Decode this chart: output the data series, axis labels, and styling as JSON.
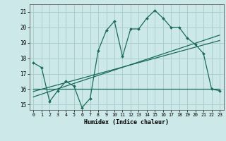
{
  "xlabel": "Humidex (Indice chaleur)",
  "bg_color": "#cce8e8",
  "grid_color": "#aacfcf",
  "line_color": "#1a6b5a",
  "xlim": [
    -0.5,
    23.5
  ],
  "ylim": [
    14.65,
    21.5
  ],
  "yticks": [
    15,
    16,
    17,
    18,
    19,
    20,
    21
  ],
  "xticks": [
    0,
    1,
    2,
    3,
    4,
    5,
    6,
    7,
    8,
    9,
    10,
    11,
    12,
    13,
    14,
    15,
    16,
    17,
    18,
    19,
    20,
    21,
    22,
    23
  ],
  "line1_x": [
    0,
    1,
    2,
    3,
    4,
    5,
    6,
    7,
    8,
    9,
    10,
    11,
    12,
    13,
    14,
    15,
    16,
    17,
    18,
    19,
    20,
    21,
    22,
    23
  ],
  "line1_y": [
    17.7,
    17.4,
    15.2,
    15.9,
    16.5,
    16.2,
    14.8,
    15.4,
    18.5,
    19.8,
    20.4,
    18.1,
    19.9,
    19.9,
    20.6,
    21.1,
    20.6,
    20.0,
    20.0,
    19.3,
    18.9,
    18.3,
    16.0,
    15.9
  ],
  "line2_x": [
    0,
    23
  ],
  "line2_y": [
    16.0,
    16.0
  ],
  "line3_x": [
    0,
    23
  ],
  "line3_y": [
    15.85,
    19.15
  ],
  "line4_x": [
    0,
    23
  ],
  "line4_y": [
    15.5,
    19.5
  ]
}
